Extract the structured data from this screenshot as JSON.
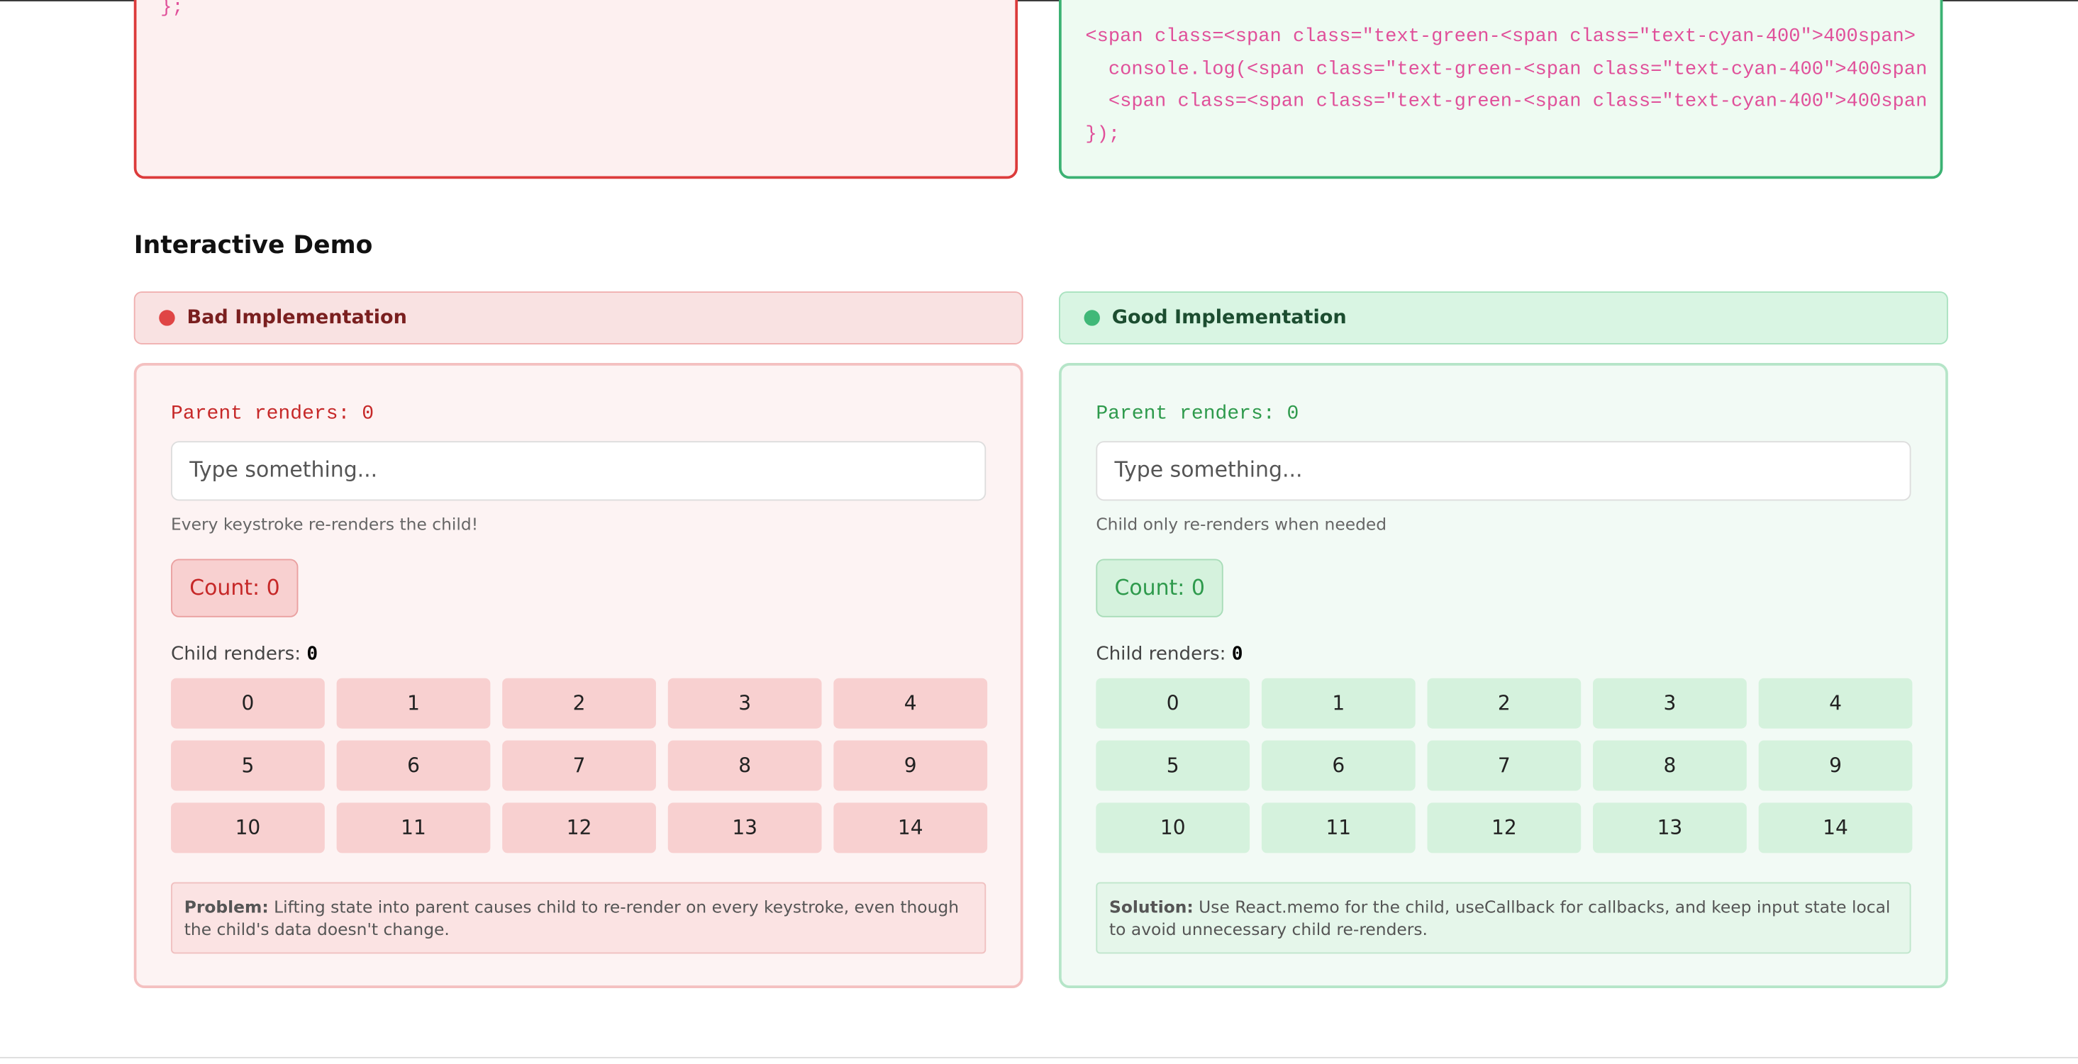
{
  "code": {
    "bad": [
      "};"
    ],
    "good": [
      "<span class=<span class=\"text-green-<span class=\"text-cyan-400\">400span>",
      "  console.log(<span class=\"text-green-<span class=\"text-cyan-400\">400span",
      "  <span class=<span class=\"text-green-<span class=\"text-cyan-400\">400span",
      "});"
    ]
  },
  "section_title": "Interactive Demo",
  "panels": [
    {
      "label": "Bad Implementation",
      "parent_renders_label": "Parent renders:",
      "parent_renders": 0,
      "placeholder": "Type something...",
      "hint": "Every keystroke re-renders the child!",
      "count_label": "Count:",
      "count": 0,
      "child_renders_label": "Child renders:",
      "child_renders": 0,
      "items": [
        0,
        1,
        2,
        3,
        4,
        5,
        6,
        7,
        8,
        9,
        10,
        11,
        12,
        13,
        14
      ],
      "note_label": "Problem:",
      "note": "Lifting state into parent causes child to re-render on every keystroke, even though the child's data doesn't change."
    },
    {
      "label": "Good Implementation",
      "parent_renders_label": "Parent renders:",
      "parent_renders": 0,
      "placeholder": "Type something...",
      "hint": "Child only re-renders when needed",
      "count_label": "Count:",
      "count": 0,
      "child_renders_label": "Child renders:",
      "child_renders": 0,
      "items": [
        0,
        1,
        2,
        3,
        4,
        5,
        6,
        7,
        8,
        9,
        10,
        11,
        12,
        13,
        14
      ],
      "note_label": "Solution:",
      "note": "Use React.memo for the child, useCallback for callbacks, and keep input state local to avoid unnecessary child re-renders."
    }
  ]
}
